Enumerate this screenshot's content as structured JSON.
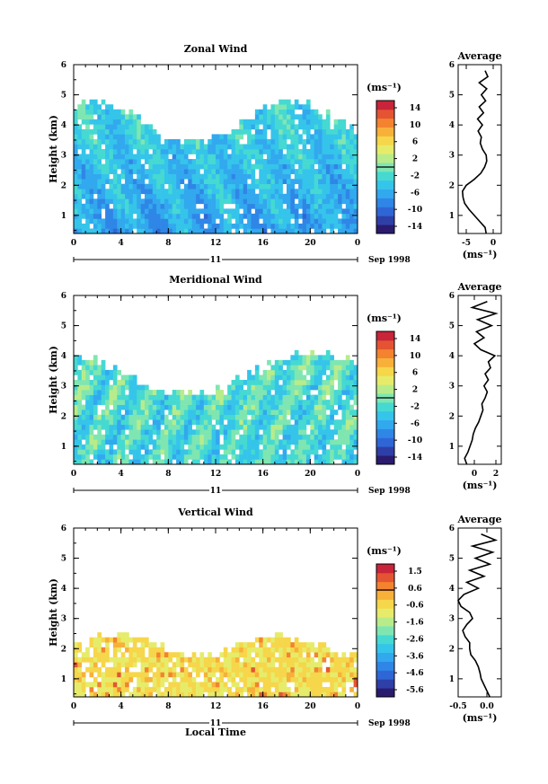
{
  "figure": {
    "date_label": "Sep 1998",
    "day_label": "11",
    "xlabel": "Local Time"
  },
  "colorbar": {
    "colors": [
      "#2a1b6e",
      "#2f3fa8",
      "#2f66d6",
      "#2f86e6",
      "#32a8ee",
      "#35c4ea",
      "#45d9d2",
      "#7fe6b2",
      "#b8ec8a",
      "#e6ec6a",
      "#f6d64a",
      "#f7b03a",
      "#f3832f",
      "#e55432",
      "#c8243a"
    ]
  },
  "chart_data": [
    {
      "id": "zonal",
      "type": "heatmap",
      "title": "Zonal Wind",
      "xlabel": "",
      "ylabel": "Height (km)",
      "x_ticks": [
        "0",
        "4",
        "8",
        "12",
        "16",
        "20",
        "0"
      ],
      "y_ticks": [
        "1",
        "2",
        "3",
        "4",
        "5",
        "6"
      ],
      "xlim": [
        0,
        24
      ],
      "ylim": [
        0.4,
        6
      ],
      "colorbar": {
        "units": "(ms⁻¹)",
        "ticks": [
          "14",
          "10",
          "6",
          "2",
          "-2",
          "-6",
          "-10",
          "-14"
        ],
        "range": [
          -15,
          15
        ]
      },
      "profile": {
        "title": "Average",
        "xlabel": "(ms⁻¹)",
        "x_ticks": [
          "-5",
          "0"
        ],
        "xlim": [
          -6.5,
          1.5
        ],
        "heights": [
          0.4,
          0.6,
          0.8,
          1.0,
          1.2,
          1.4,
          1.6,
          1.8,
          2.0,
          2.2,
          2.4,
          2.6,
          2.8,
          3.0,
          3.2,
          3.4,
          3.6,
          3.8,
          4.0,
          4.2,
          4.4,
          4.6,
          4.8,
          5.0,
          5.2,
          5.4,
          5.6,
          5.8
        ],
        "values": [
          -1.3,
          -1.5,
          -2.5,
          -3.5,
          -4.5,
          -5.3,
          -5.6,
          -5.7,
          -5.0,
          -3.5,
          -2.3,
          -1.6,
          -1.2,
          -1.3,
          -2.0,
          -2.4,
          -2.2,
          -2.8,
          -2.0,
          -2.9,
          -1.8,
          -2.6,
          -1.4,
          -2.2,
          -1.2,
          -2.6,
          -1.0,
          -1.5
        ]
      }
    },
    {
      "id": "meridional",
      "type": "heatmap",
      "title": "Meridional Wind",
      "xlabel": "",
      "ylabel": "Height (km)",
      "x_ticks": [
        "0",
        "4",
        "8",
        "12",
        "16",
        "20",
        "0"
      ],
      "y_ticks": [
        "1",
        "2",
        "3",
        "4",
        "5",
        "6"
      ],
      "xlim": [
        0,
        24
      ],
      "ylim": [
        0.4,
        6
      ],
      "colorbar": {
        "units": "(ms⁻¹)",
        "ticks": [
          "14",
          "10",
          "6",
          "2",
          "-2",
          "-6",
          "-10",
          "-14"
        ],
        "range": [
          -15,
          15
        ]
      },
      "profile": {
        "title": "Average",
        "xlabel": "(ms⁻¹)",
        "x_ticks": [
          "0",
          "2"
        ],
        "xlim": [
          -1.5,
          2.5
        ],
        "heights": [
          0.4,
          0.6,
          0.8,
          1.0,
          1.2,
          1.4,
          1.6,
          1.8,
          2.0,
          2.2,
          2.4,
          2.6,
          2.8,
          3.0,
          3.2,
          3.4,
          3.6,
          3.8,
          4.0,
          4.2,
          4.4,
          4.6,
          4.8,
          5.0,
          5.2,
          5.4,
          5.6,
          5.8
        ],
        "values": [
          -0.7,
          -0.9,
          -0.6,
          -0.4,
          -0.2,
          -0.1,
          0.1,
          0.4,
          0.6,
          0.8,
          0.7,
          1.0,
          1.2,
          0.9,
          1.3,
          1.0,
          1.5,
          1.3,
          1.9,
          0.6,
          0.0,
          0.9,
          0.2,
          1.6,
          0.3,
          2.0,
          -0.2,
          1.2
        ]
      }
    },
    {
      "id": "vertical",
      "type": "heatmap",
      "title": "Vertical Wind",
      "xlabel": "Local Time",
      "ylabel": "Height (km)",
      "x_ticks": [
        "0",
        "4",
        "8",
        "12",
        "16",
        "20",
        "0"
      ],
      "y_ticks": [
        "1",
        "2",
        "3",
        "4",
        "5",
        "6"
      ],
      "xlim": [
        0,
        24
      ],
      "ylim": [
        0.4,
        6
      ],
      "colorbar": {
        "units": "(ms⁻¹)",
        "ticks": [
          "1.5",
          "0.6",
          "-0.6",
          "-1.6",
          "-2.6",
          "-3.6",
          "-4.6",
          "-5.6"
        ],
        "range": [
          -6,
          2
        ]
      },
      "profile": {
        "title": "Average",
        "xlabel": "(ms⁻¹)",
        "x_ticks": [
          "-0.5",
          "0.0"
        ],
        "xlim": [
          -0.5,
          0.25
        ],
        "heights": [
          0.4,
          0.6,
          0.8,
          1.0,
          1.2,
          1.4,
          1.6,
          1.8,
          2.0,
          2.2,
          2.4,
          2.6,
          2.8,
          3.0,
          3.2,
          3.4,
          3.6,
          3.8,
          4.0,
          4.2,
          4.4,
          4.6,
          4.8,
          5.0,
          5.2,
          5.4,
          5.6,
          5.8
        ],
        "values": [
          0.05,
          0.0,
          -0.05,
          -0.1,
          -0.12,
          -0.15,
          -0.2,
          -0.28,
          -0.3,
          -0.3,
          -0.38,
          -0.42,
          -0.35,
          -0.25,
          -0.3,
          -0.45,
          -0.5,
          -0.4,
          -0.15,
          -0.35,
          -0.05,
          -0.3,
          0.05,
          -0.2,
          0.1,
          -0.25,
          0.15,
          -0.1
        ]
      }
    }
  ]
}
